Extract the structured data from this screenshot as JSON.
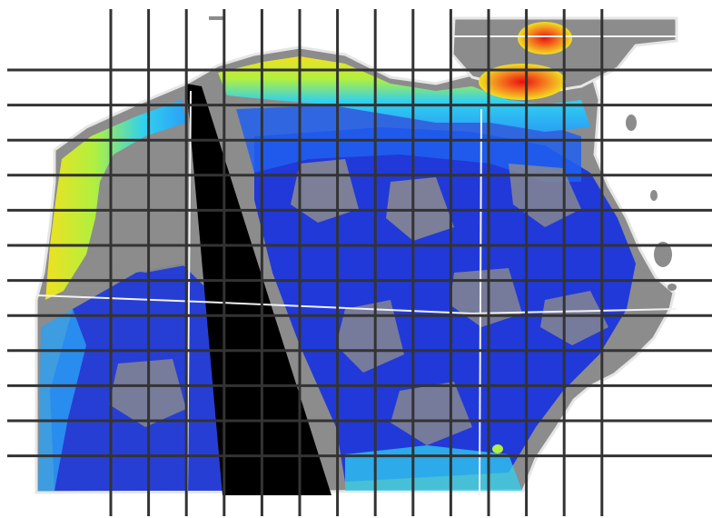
{
  "map": {
    "kind": "satellite ocean color composite",
    "colors": {
      "background": "#ffffff",
      "land_mask": "#8c8c8c",
      "coast_outline": "#e6e6e6",
      "no_data_swath": "#000000",
      "grid_lines": "#333333",
      "reference_lines": "#f2f2f2"
    },
    "color_scale": [
      "#1530e0",
      "#2060f0",
      "#2aa0f5",
      "#30d0f0",
      "#40e0a0",
      "#b0f040",
      "#f0e020",
      "#f58020",
      "#e81010"
    ],
    "grid": {
      "vertical_line_count": 14,
      "horizontal_line_count": 12
    }
  }
}
